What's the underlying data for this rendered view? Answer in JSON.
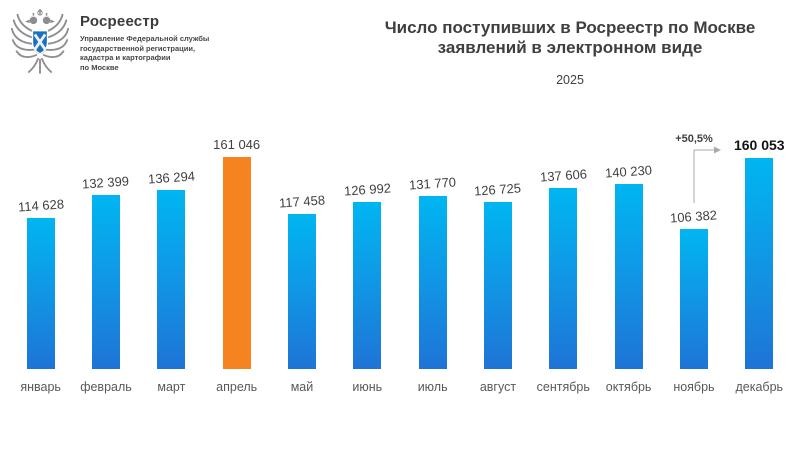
{
  "logo": {
    "brand": "Росреестр",
    "org_lines": [
      "Управление Федеральной службы",
      "государственной регистрации,",
      "кадастра и картографии",
      "по Москве"
    ],
    "shield_color": "#1c6fbf",
    "eagle_color": "#8e8e8e"
  },
  "header": {
    "title_line1": "Число поступивших в Росреестр по Москве",
    "title_line2": "заявлений в электронном виде",
    "year": "2025"
  },
  "chart_data": {
    "type": "bar",
    "title": "Число поступивших в Росреестр по Москве заявлений в электронном виде",
    "subtitle": "2025",
    "categories": [
      "январь",
      "февраль",
      "март",
      "апрель",
      "май",
      "июнь",
      "июль",
      "август",
      "сентябрь",
      "октябрь",
      "ноябрь",
      "декабрь"
    ],
    "values": [
      114628,
      132399,
      136294,
      161046,
      117458,
      126992,
      131770,
      126725,
      137606,
      140230,
      106382,
      160053
    ],
    "value_labels": [
      "114 628",
      "132 399",
      "136 294",
      "161 046",
      "117 458",
      "126 992",
      "131 770",
      "126 725",
      "137 606",
      "140 230",
      "106 382",
      "160 053"
    ],
    "xlabel": "",
    "ylabel": "",
    "ylim": [
      0,
      161046
    ],
    "grid": false,
    "legend": false,
    "bar_color_top": "#00b6f1",
    "bar_color_bottom": "#1e74d6",
    "highlight_index": 3,
    "highlight_color": "#f5831f",
    "bold_label_index": 11,
    "straight_label_indexes": [
      3,
      11
    ],
    "annotation": {
      "text": "+50,5%",
      "from_category": "ноябрь",
      "to_category": "декабрь",
      "line_color": "#a9a9a9"
    }
  }
}
